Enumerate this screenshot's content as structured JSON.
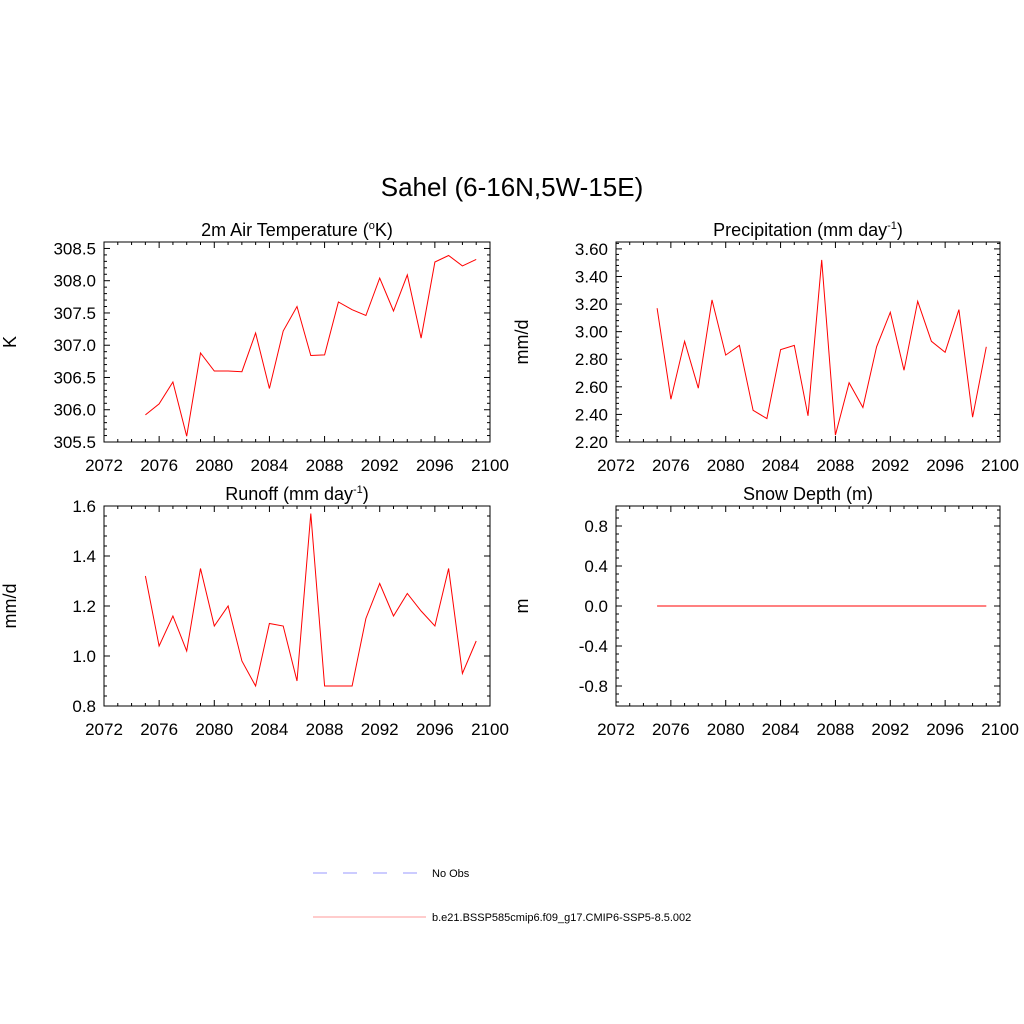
{
  "title": "Sahel (6-16N,5W-15E)",
  "legend": [
    {
      "label": "No Obs",
      "color": "#9999ff",
      "dash": true
    },
    {
      "label": "b.e21.BSSP585cmip6.f09_g17.CMIP6-SSP5-8.5.002",
      "color": "#ff9999",
      "dash": false
    }
  ],
  "chart_data": [
    {
      "type": "line",
      "title": "2m Air Temperature (",
      "title_sup": "o",
      "title_end": "K)",
      "ylabel": "K",
      "xlim": [
        2072,
        2100
      ],
      "ylim": [
        305.5,
        308.6
      ],
      "xticks": [
        2072,
        2076,
        2080,
        2084,
        2088,
        2092,
        2096,
        2100
      ],
      "yticks": [
        "305.5",
        "306.0",
        "306.5",
        "307.0",
        "307.5",
        "308.0",
        "308.5"
      ],
      "color": "#ff0000",
      "x": [
        2075,
        2076,
        2077,
        2078,
        2079,
        2080,
        2081,
        2082,
        2083,
        2084,
        2085,
        2086,
        2087,
        2088,
        2089,
        2090,
        2091,
        2092,
        2093,
        2094,
        2095,
        2096,
        2097,
        2098,
        2099
      ],
      "values": [
        305.92,
        306.09,
        306.43,
        305.59,
        306.88,
        306.6,
        306.6,
        306.59,
        307.19,
        306.33,
        307.22,
        307.6,
        306.84,
        306.85,
        307.67,
        307.55,
        307.46,
        308.04,
        307.53,
        308.09,
        307.11,
        308.29,
        308.39,
        308.23,
        308.33
      ]
    },
    {
      "type": "line",
      "title": "Precipitation (mm day",
      "title_sup": "-1",
      "title_end": ")",
      "ylabel": "mm/d",
      "xlim": [
        2072,
        2100
      ],
      "ylim": [
        2.2,
        3.65
      ],
      "xticks": [
        2072,
        2076,
        2080,
        2084,
        2088,
        2092,
        2096,
        2100
      ],
      "yticks": [
        "2.20",
        "2.40",
        "2.60",
        "2.80",
        "3.00",
        "3.20",
        "3.40",
        "3.60"
      ],
      "color": "#ff0000",
      "x": [
        2075,
        2076,
        2077,
        2078,
        2079,
        2080,
        2081,
        2082,
        2083,
        2084,
        2085,
        2086,
        2087,
        2088,
        2089,
        2090,
        2091,
        2092,
        2093,
        2094,
        2095,
        2096,
        2097,
        2098,
        2099
      ],
      "values": [
        3.17,
        2.51,
        2.93,
        2.59,
        3.23,
        2.83,
        2.9,
        2.43,
        2.37,
        2.87,
        2.9,
        2.39,
        3.52,
        2.25,
        2.63,
        2.45,
        2.89,
        3.14,
        2.72,
        3.22,
        2.93,
        2.85,
        3.16,
        2.38,
        2.89
      ]
    },
    {
      "type": "line",
      "title": "Runoff (mm day",
      "title_sup": "-1",
      "title_end": ")",
      "ylabel": "mm/d",
      "xlim": [
        2072,
        2100
      ],
      "ylim": [
        0.8,
        1.6
      ],
      "xticks": [
        2072,
        2076,
        2080,
        2084,
        2088,
        2092,
        2096,
        2100
      ],
      "yticks": [
        "0.8",
        "1.0",
        "1.2",
        "1.4",
        "1.6"
      ],
      "color": "#ff0000",
      "x": [
        2075,
        2076,
        2077,
        2078,
        2079,
        2080,
        2081,
        2082,
        2083,
        2084,
        2085,
        2086,
        2087,
        2088,
        2089,
        2090,
        2091,
        2092,
        2093,
        2094,
        2095,
        2096,
        2097,
        2098,
        2099
      ],
      "values": [
        1.32,
        1.04,
        1.16,
        1.02,
        1.35,
        1.12,
        1.2,
        0.98,
        0.88,
        1.13,
        1.12,
        0.9,
        1.57,
        0.88,
        0.88,
        0.88,
        1.15,
        1.29,
        1.16,
        1.25,
        1.18,
        1.12,
        1.35,
        0.93,
        1.06
      ]
    },
    {
      "type": "line",
      "title": "Snow Depth (m)",
      "title_sup": "",
      "title_end": "",
      "ylabel": "m",
      "xlim": [
        2072,
        2100
      ],
      "ylim": [
        -1.0,
        1.0
      ],
      "xticks": [
        2072,
        2076,
        2080,
        2084,
        2088,
        2092,
        2096,
        2100
      ],
      "yticks": [
        "-0.8",
        "-0.4",
        "0.0",
        "0.4",
        "0.8"
      ],
      "color": "#ff0000",
      "x": [
        2075,
        2076,
        2077,
        2078,
        2079,
        2080,
        2081,
        2082,
        2083,
        2084,
        2085,
        2086,
        2087,
        2088,
        2089,
        2090,
        2091,
        2092,
        2093,
        2094,
        2095,
        2096,
        2097,
        2098,
        2099
      ],
      "values": [
        0,
        0,
        0,
        0,
        0,
        0,
        0,
        0,
        0,
        0,
        0,
        0,
        0,
        0,
        0,
        0,
        0,
        0,
        0,
        0,
        0,
        0,
        0,
        0,
        0
      ]
    }
  ]
}
